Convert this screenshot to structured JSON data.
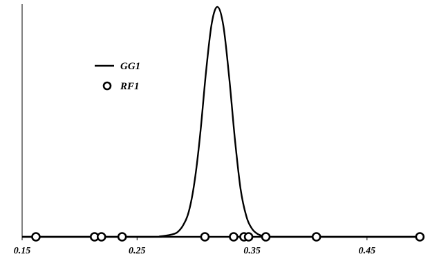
{
  "chart_data": {
    "type": "line",
    "title": "",
    "xlabel": "",
    "ylabel": "",
    "xlim": [
      0.15,
      0.5
    ],
    "ylim": [
      0,
      1.0
    ],
    "x_ticks": [
      0.15,
      0.25,
      0.35,
      0.45
    ],
    "x_tick_labels": [
      "0.15",
      "0.25",
      "0.35",
      "0.45"
    ],
    "grid": false,
    "legend_position": "upper-left",
    "series": [
      {
        "name": "GG1",
        "kind": "line",
        "color": "#000000",
        "x": [
          0.15,
          0.26,
          0.27,
          0.28,
          0.285,
          0.29,
          0.295,
          0.3,
          0.305,
          0.31,
          0.315,
          0.32,
          0.325,
          0.33,
          0.335,
          0.34,
          0.345,
          0.35,
          0.355,
          0.36,
          0.37,
          0.5
        ],
        "y": [
          0.0,
          0.0,
          0.002,
          0.01,
          0.02,
          0.05,
          0.11,
          0.24,
          0.45,
          0.72,
          0.93,
          1.0,
          0.92,
          0.7,
          0.43,
          0.21,
          0.09,
          0.035,
          0.012,
          0.004,
          0.0,
          0.0
        ]
      },
      {
        "name": "RF1",
        "kind": "scatter",
        "color": "#000000",
        "marker": "open-circle",
        "x": [
          0.162,
          0.213,
          0.219,
          0.237,
          0.309,
          0.334,
          0.343,
          0.347,
          0.362,
          0.406,
          0.496
        ],
        "y": [
          0,
          0,
          0,
          0,
          0,
          0,
          0,
          0,
          0,
          0,
          0
        ]
      }
    ]
  }
}
